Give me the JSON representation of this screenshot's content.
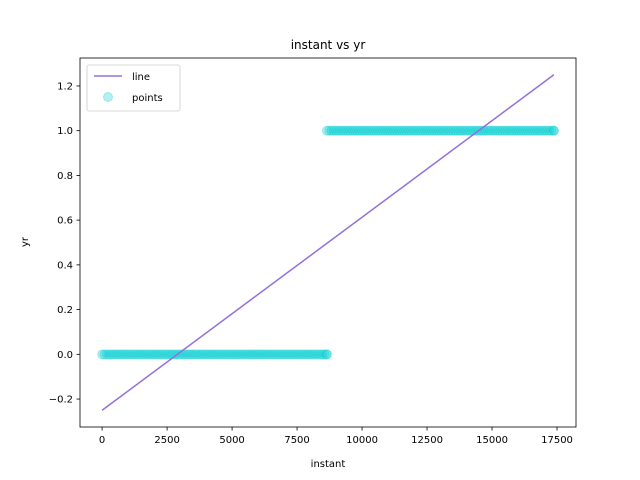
{
  "chart_data": {
    "type": "scatter",
    "title": "instant vs yr",
    "xlabel": "instant",
    "ylabel": "yr",
    "xlim": [
      -850,
      18230
    ],
    "ylim": [
      -0.325,
      1.325
    ],
    "xticks": [
      0,
      2500,
      5000,
      7500,
      10000,
      12500,
      15000,
      17500
    ],
    "xtick_labels": [
      "0",
      "2500",
      "5000",
      "7500",
      "10000",
      "12500",
      "15000",
      "17500"
    ],
    "yticks": [
      -0.2,
      0.0,
      0.2,
      0.4,
      0.6,
      0.8,
      1.0,
      1.2
    ],
    "ytick_labels": [
      "−0.2",
      "0.0",
      "0.2",
      "0.4",
      "0.6",
      "0.8",
      "1.0",
      "1.2"
    ],
    "grid": false,
    "legend": {
      "placement": "top-left",
      "entries": [
        "line",
        "points"
      ]
    },
    "series": [
      {
        "name": "line",
        "kind": "line",
        "color": "#9370db",
        "x": [
          1,
          17379
        ],
        "y": [
          -0.25,
          1.25
        ]
      },
      {
        "name": "points",
        "kind": "scatter",
        "color": "#00ced1",
        "segments": [
          {
            "x_start": 1,
            "x_end": 8645,
            "y": 0
          },
          {
            "x_start": 8646,
            "x_end": 17379,
            "y": 1
          }
        ]
      }
    ]
  }
}
